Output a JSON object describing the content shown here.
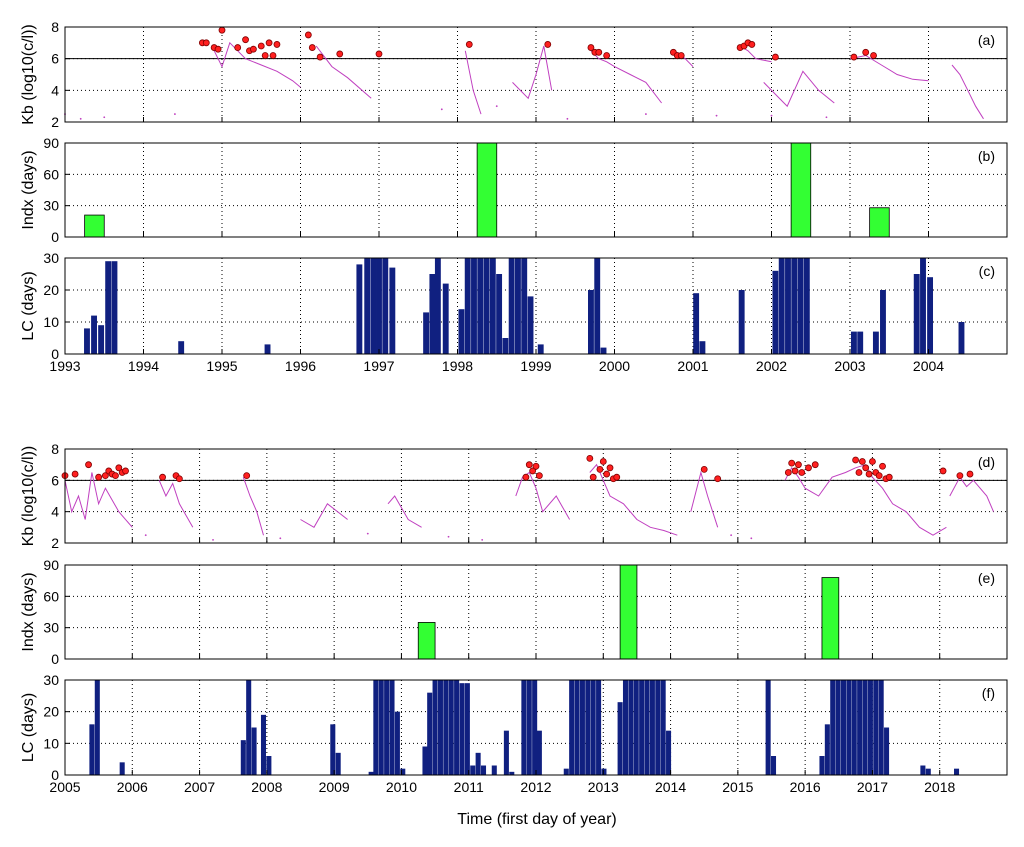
{
  "figure": {
    "xlabel": "Time (first day of year)"
  },
  "chart_data": [
    {
      "type": "line",
      "panel": "(a)",
      "ylabel": "Kb (log10(c/l))",
      "xlim": [
        1993,
        2005
      ],
      "ylim": [
        2,
        8
      ],
      "yticks": [
        2,
        4,
        6,
        8
      ],
      "threshold": 6,
      "grid": true,
      "line_color": "#c040c0",
      "marker_color": "#ff2020",
      "series": [
        {
          "x": [
            1994.9,
            1995.0,
            1995.1,
            1995.3,
            1995.5,
            1995.7,
            1995.9,
            1996.0
          ],
          "y": [
            6.5,
            5.5,
            7.0,
            6.0,
            5.6,
            5.2,
            4.6,
            4.2
          ]
        },
        {
          "x": [
            1996.2,
            1996.4,
            1996.6,
            1996.9
          ],
          "y": [
            6.8,
            5.5,
            4.8,
            3.5
          ]
        },
        {
          "x": [
            1998.1,
            1998.2,
            1998.3
          ],
          "y": [
            6.5,
            4.0,
            2.5
          ]
        },
        {
          "x": [
            1998.7,
            1998.9,
            1999.0,
            1999.1,
            1999.2
          ],
          "y": [
            4.5,
            3.5,
            5.0,
            6.8,
            4.0
          ]
        },
        {
          "x": [
            1999.7,
            1999.8,
            1999.9,
            2000.0,
            2000.2,
            2000.4,
            2000.6
          ],
          "y": [
            6.5,
            6.0,
            5.8,
            5.5,
            5.0,
            4.5,
            3.2
          ]
        },
        {
          "x": [
            2000.8,
            2000.9,
            2001.0
          ],
          "y": [
            6.4,
            6.0,
            5.5
          ]
        },
        {
          "x": [
            2001.6,
            2001.7,
            2001.8,
            2002.0
          ],
          "y": [
            6.8,
            6.5,
            6.0,
            5.8
          ]
        },
        {
          "x": [
            2001.9,
            2002.2,
            2002.4,
            2002.6,
            2002.8
          ],
          "y": [
            4.5,
            3.0,
            5.2,
            4.0,
            3.2
          ]
        },
        {
          "x": [
            2003.0,
            2003.2,
            2003.4,
            2003.6,
            2003.8,
            2004.0
          ],
          "y": [
            6.0,
            6.2,
            5.6,
            5.0,
            4.7,
            4.6
          ]
        },
        {
          "x": [
            2004.3,
            2004.4,
            2004.5,
            2004.6,
            2004.7
          ],
          "y": [
            5.6,
            5.0,
            4.0,
            3.0,
            2.2
          ]
        }
      ],
      "dots": [
        {
          "x": [
            1993.0,
            1993.2,
            1993.5,
            1994.4,
            1997.8,
            1998.5,
            1999.4,
            2000.4,
            2001.3,
            2002.0,
            2002.7
          ],
          "y": [
            2.5,
            2.2,
            2.3,
            2.5,
            2.8,
            3.0,
            2.2,
            2.5,
            2.4,
            2.4,
            2.3
          ]
        }
      ],
      "markers": {
        "x": [
          1994.75,
          1994.8,
          1994.9,
          1994.95,
          1995.0,
          1995.2,
          1995.3,
          1995.35,
          1995.4,
          1995.5,
          1995.55,
          1995.6,
          1995.65,
          1995.7,
          1996.1,
          1996.15,
          1996.25,
          1996.5,
          1997.0,
          1998.15,
          1999.15,
          1999.7,
          1999.75,
          1999.8,
          1999.9,
          2000.75,
          2000.8,
          2000.85,
          2001.6,
          2001.65,
          2001.7,
          2001.75,
          2002.05,
          2003.05,
          2003.2,
          2003.3
        ],
        "y": [
          7.0,
          7.0,
          6.7,
          6.6,
          7.8,
          6.7,
          7.2,
          6.5,
          6.6,
          6.8,
          6.2,
          7.0,
          6.2,
          6.9,
          7.5,
          6.7,
          6.1,
          6.3,
          6.3,
          6.9,
          6.9,
          6.7,
          6.4,
          6.4,
          6.2,
          6.4,
          6.2,
          6.2,
          6.7,
          6.8,
          7.0,
          6.9,
          6.1,
          6.1,
          6.4,
          6.2
        ]
      }
    },
    {
      "type": "bar",
      "panel": "(b)",
      "ylabel": "Indx (days)",
      "xlim": [
        1993,
        2005
      ],
      "ylim": [
        0,
        90
      ],
      "yticks": [
        0,
        30,
        60,
        90
      ],
      "grid": true,
      "color": "#33ff33",
      "x_start": [
        1993.25,
        1998.25,
        2002.25,
        2003.25
      ],
      "width": [
        0.25,
        0.25,
        0.25,
        0.25
      ],
      "values": [
        21,
        90,
        90,
        28
      ]
    },
    {
      "type": "bar",
      "panel": "(c)",
      "ylabel": "LC (days)",
      "xlim": [
        1993,
        2005
      ],
      "ylim": [
        0,
        30
      ],
      "yticks": [
        0,
        10,
        20,
        30
      ],
      "grid": true,
      "color": "#102080",
      "x": [
        1993.28,
        1993.37,
        1993.46,
        1993.55,
        1993.63,
        1994.48,
        1995.58,
        1996.75,
        1996.85,
        1996.93,
        1997.0,
        1997.08,
        1997.17,
        1997.6,
        1997.68,
        1997.75,
        1997.85,
        1998.05,
        1998.13,
        1998.21,
        1998.29,
        1998.37,
        1998.45,
        1998.53,
        1998.61,
        1998.69,
        1998.77,
        1998.85,
        1998.93,
        1999.06,
        1999.7,
        1999.78,
        1999.86,
        2001.04,
        2001.12,
        2001.62,
        2002.05,
        2002.13,
        2002.21,
        2002.29,
        2002.37,
        2002.45,
        2003.05,
        2003.13,
        2003.33,
        2003.42,
        2003.85,
        2003.93,
        2004.02,
        2004.42
      ],
      "values": [
        8,
        12,
        9,
        29,
        29,
        4,
        3,
        28,
        30,
        30,
        30,
        30,
        27,
        13,
        25,
        30,
        22,
        14,
        30,
        30,
        30,
        30,
        30,
        25,
        5,
        30,
        30,
        30,
        18,
        3,
        20,
        30,
        2,
        19,
        4,
        20,
        26,
        30,
        30,
        30,
        30,
        30,
        7,
        7,
        7,
        20,
        25,
        30,
        24,
        10
      ]
    },
    {
      "type": "line",
      "panel": "(d)",
      "ylabel": "Kb (log10(c/l))",
      "xlim": [
        2005,
        2019
      ],
      "ylim": [
        2,
        8
      ],
      "yticks": [
        2,
        4,
        6,
        8
      ],
      "threshold": 6,
      "grid": true,
      "line_color": "#c040c0",
      "marker_color": "#ff2020",
      "series": [
        {
          "x": [
            2005.0,
            2005.1,
            2005.2,
            2005.3,
            2005.4,
            2005.5,
            2005.6,
            2005.8,
            2006.0
          ],
          "y": [
            6.0,
            4.0,
            5.0,
            3.5,
            6.5,
            4.5,
            5.5,
            4.0,
            3.0
          ]
        },
        {
          "x": [
            2006.4,
            2006.5,
            2006.6,
            2006.7,
            2006.9
          ],
          "y": [
            6.0,
            5.0,
            5.8,
            4.5,
            3.0
          ]
        },
        {
          "x": [
            2007.65,
            2007.75,
            2007.85,
            2007.95
          ],
          "y": [
            6.2,
            5.0,
            4.0,
            2.5
          ]
        },
        {
          "x": [
            2008.5,
            2008.7,
            2008.9,
            2009.2
          ],
          "y": [
            3.5,
            3.0,
            4.5,
            3.5
          ]
        },
        {
          "x": [
            2009.8,
            2009.9,
            2010.1,
            2010.3
          ],
          "y": [
            4.5,
            5.0,
            3.5,
            3.0
          ]
        },
        {
          "x": [
            2011.7,
            2011.8,
            2011.9,
            2012.0,
            2012.1,
            2012.3,
            2012.5
          ],
          "y": [
            5.0,
            6.2,
            6.5,
            5.5,
            4.0,
            5.0,
            3.5
          ]
        },
        {
          "x": [
            2012.8,
            2012.9,
            2013.0,
            2013.1,
            2013.3,
            2013.5,
            2013.7,
            2013.9,
            2014.1
          ],
          "y": [
            6.5,
            7.0,
            6.0,
            5.0,
            4.5,
            3.5,
            3.0,
            2.8,
            2.5
          ]
        },
        {
          "x": [
            2014.3,
            2014.45,
            2014.55,
            2014.7
          ],
          "y": [
            4.0,
            6.5,
            5.0,
            3.0
          ]
        },
        {
          "x": [
            2015.7,
            2015.8,
            2015.9,
            2016.0,
            2016.2,
            2016.4,
            2016.6,
            2016.75
          ],
          "y": [
            6.0,
            6.8,
            6.2,
            5.5,
            5.0,
            6.2,
            6.5,
            6.8
          ]
        },
        {
          "x": [
            2016.75,
            2016.9,
            2017.0,
            2017.15,
            2017.3,
            2017.5,
            2017.7,
            2017.9,
            2018.1
          ],
          "y": [
            6.8,
            7.0,
            6.2,
            5.5,
            4.5,
            4.0,
            3.0,
            2.5,
            3.0
          ]
        },
        {
          "x": [
            2018.15,
            2018.3,
            2018.4,
            2018.5,
            2018.6,
            2018.7,
            2018.8
          ],
          "y": [
            5.0,
            6.2,
            5.6,
            6.0,
            5.5,
            5.0,
            4.0
          ]
        }
      ],
      "dots": [
        {
          "x": [
            2006.2,
            2007.2,
            2008.2,
            2009.5,
            2010.7,
            2011.2,
            2014.9,
            2015.2
          ],
          "y": [
            2.5,
            2.2,
            2.3,
            2.6,
            2.4,
            2.2,
            2.5,
            2.3
          ]
        }
      ],
      "markers": {
        "x": [
          2005.0,
          2005.15,
          2005.35,
          2005.5,
          2005.6,
          2005.65,
          2005.7,
          2005.75,
          2005.8,
          2005.85,
          2005.9,
          2006.45,
          2006.65,
          2006.7,
          2007.7,
          2011.85,
          2011.9,
          2011.95,
          2012.0,
          2012.05,
          2012.8,
          2012.85,
          2012.95,
          2013.0,
          2013.05,
          2013.1,
          2013.15,
          2013.2,
          2014.5,
          2014.7,
          2015.75,
          2015.8,
          2015.85,
          2015.9,
          2015.95,
          2016.05,
          2016.15,
          2016.75,
          2016.8,
          2016.85,
          2016.9,
          2016.95,
          2017.0,
          2017.05,
          2017.1,
          2017.15,
          2017.2,
          2017.25,
          2018.05,
          2018.3,
          2018.45
        ],
        "y": [
          6.3,
          6.4,
          7.0,
          6.2,
          6.3,
          6.6,
          6.4,
          6.3,
          6.8,
          6.5,
          6.6,
          6.2,
          6.3,
          6.1,
          6.3,
          6.2,
          7.0,
          6.6,
          6.9,
          6.3,
          7.4,
          6.2,
          6.7,
          7.2,
          6.4,
          6.8,
          6.1,
          6.2,
          6.7,
          6.1,
          6.5,
          7.1,
          6.6,
          7.0,
          6.5,
          6.8,
          7.0,
          7.3,
          6.5,
          7.2,
          6.8,
          6.4,
          7.2,
          6.5,
          6.3,
          6.9,
          6.1,
          6.2,
          6.6,
          6.3,
          6.4
        ]
      }
    },
    {
      "type": "bar",
      "panel": "(e)",
      "ylabel": "Indx (days)",
      "xlim": [
        2005,
        2019
      ],
      "ylim": [
        0,
        90
      ],
      "yticks": [
        0,
        30,
        60,
        90
      ],
      "grid": true,
      "color": "#33ff33",
      "x_start": [
        2010.25,
        2013.25,
        2016.25
      ],
      "width": [
        0.25,
        0.25,
        0.25
      ],
      "values": [
        35,
        90,
        78
      ]
    },
    {
      "type": "bar",
      "panel": "(f)",
      "ylabel": "LC (days)",
      "xlim": [
        2005,
        2019
      ],
      "ylim": [
        0,
        30
      ],
      "yticks": [
        0,
        10,
        20,
        30
      ],
      "grid": true,
      "color": "#102080",
      "x": [
        2005.4,
        2005.48,
        2005.85,
        2007.65,
        2007.73,
        2007.81,
        2007.95,
        2008.03,
        2008.98,
        2009.06,
        2009.55,
        2009.62,
        2009.7,
        2009.78,
        2009.86,
        2009.94,
        2010.02,
        2010.35,
        2010.42,
        2010.5,
        2010.58,
        2010.66,
        2010.74,
        2010.82,
        2010.9,
        2010.98,
        2011.06,
        2011.14,
        2011.22,
        2011.38,
        2011.56,
        2011.64,
        2011.82,
        2011.9,
        2011.98,
        2012.05,
        2012.45,
        2012.53,
        2012.61,
        2012.69,
        2012.77,
        2012.85,
        2012.93,
        2013.01,
        2013.25,
        2013.33,
        2013.41,
        2013.49,
        2013.57,
        2013.65,
        2013.73,
        2013.81,
        2013.89,
        2013.97,
        2015.45,
        2015.53,
        2016.25,
        2016.33,
        2016.41,
        2016.49,
        2016.57,
        2016.65,
        2016.73,
        2016.81,
        2016.89,
        2016.97,
        2017.05,
        2017.13,
        2017.21,
        2017.75,
        2017.83,
        2018.25
      ],
      "values": [
        16,
        30,
        4,
        11,
        30,
        15,
        19,
        6,
        16,
        7,
        1,
        30,
        30,
        30,
        30,
        20,
        2,
        9,
        26,
        30,
        30,
        30,
        30,
        30,
        29,
        29,
        3,
        7,
        3,
        3,
        14,
        1,
        30,
        30,
        30,
        14,
        2,
        30,
        30,
        30,
        30,
        30,
        30,
        2,
        23,
        30,
        30,
        30,
        30,
        30,
        30,
        30,
        30,
        14,
        30,
        6,
        6,
        16,
        30,
        30,
        30,
        30,
        30,
        30,
        30,
        30,
        30,
        30,
        15,
        3,
        2,
        2
      ]
    }
  ],
  "x_ticks_top": [
    "1993",
    "1994",
    "1995",
    "1996",
    "1997",
    "1998",
    "1999",
    "2000",
    "2001",
    "2002",
    "2003",
    "2004"
  ],
  "x_ticks_bottom": [
    "2005",
    "2006",
    "2007",
    "2008",
    "2009",
    "2010",
    "2011",
    "2012",
    "2013",
    "2014",
    "2015",
    "2016",
    "2017",
    "2018"
  ]
}
